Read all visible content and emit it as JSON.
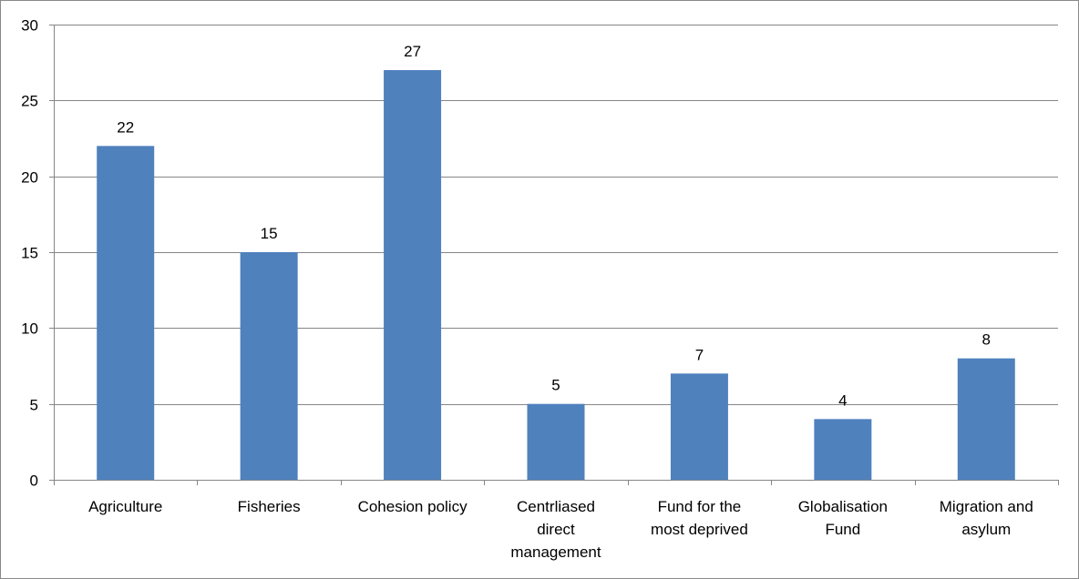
{
  "chart_data": {
    "type": "bar",
    "categories": [
      [
        "Agriculture"
      ],
      [
        "Fisheries"
      ],
      [
        "Cohesion policy"
      ],
      [
        "Centrliased",
        "direct",
        "management"
      ],
      [
        "Fund for the",
        "most deprived"
      ],
      [
        "Globalisation",
        "Fund"
      ],
      [
        "Migration and",
        "asylum"
      ]
    ],
    "values": [
      22,
      15,
      27,
      5,
      7,
      4,
      8
    ],
    "data_labels": [
      "22",
      "15",
      "27",
      "5",
      "7",
      "4",
      "8"
    ],
    "ylim": [
      0,
      30
    ],
    "yticks": [
      0,
      5,
      10,
      15,
      20,
      25,
      30
    ],
    "grid": true,
    "legend": "none",
    "bar_color": "#4f81bd",
    "grid_color": "#868686"
  }
}
